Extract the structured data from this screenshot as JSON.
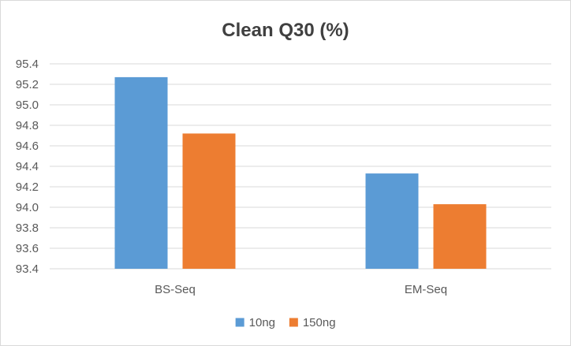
{
  "chart_data": {
    "type": "bar",
    "title": "Clean Q30 (%)",
    "xlabel": "",
    "ylabel": "",
    "categories": [
      "BS-Seq",
      "EM-Seq"
    ],
    "series": [
      {
        "name": "10ng",
        "color": "#5b9bd5",
        "values": [
          95.27,
          94.33
        ]
      },
      {
        "name": "150ng",
        "color": "#ed7d31",
        "values": [
          94.72,
          94.03
        ]
      }
    ],
    "ylim": [
      93.4,
      95.4
    ],
    "yticks": [
      "93.4",
      "93.6",
      "93.8",
      "94.0",
      "94.2",
      "94.4",
      "94.6",
      "94.8",
      "95.0",
      "95.2",
      "95.4"
    ],
    "grid": true,
    "legend": "bottom"
  }
}
